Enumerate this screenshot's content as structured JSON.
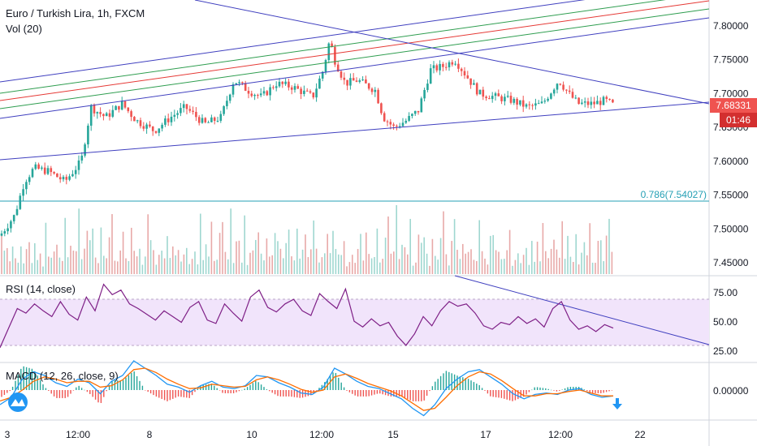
{
  "header": {
    "symbol": "Euro / Turkish Lira, 1h, FXCM",
    "volume_label": "Vol (20)"
  },
  "price_axis": {
    "ticks": [
      "7.80000",
      "7.75000",
      "7.70000",
      "7.65000",
      "7.60000",
      "7.55000",
      "7.50000",
      "7.45000"
    ],
    "last_price": "7.68331",
    "countdown": "01:46"
  },
  "fib": {
    "label": "0.786(7.54027)",
    "value": 7.54027
  },
  "rsi": {
    "label": "RSI (14, close)",
    "ticks": [
      "75.00",
      "50.00",
      "25.00"
    ],
    "upper": 70,
    "lower": 30
  },
  "macd": {
    "label": "MACD (12, 26, close, 9)",
    "ticks": [
      "0.00000"
    ]
  },
  "time_axis": {
    "labels": [
      "3",
      "12:00",
      "8",
      "10",
      "12:00",
      "15",
      "17",
      "12:00",
      "22"
    ]
  },
  "colors": {
    "up": "#26a69a",
    "down": "#ef5350",
    "trend": "#3f3fbf",
    "channel_green": "#2e9d4f",
    "channel_red": "#e53935",
    "rsi_line": "#7e1f86",
    "rsi_band": "#f1e4fb",
    "macd_line": "#2196f3",
    "signal_line": "#ff6d00",
    "fib": "#26a0b5",
    "price_badge": "#ef5350",
    "countdown_badge": "#d32f2f"
  },
  "icons": {
    "logo": "tradingview-logo-icon",
    "scroll": "scroll-to-realtime-arrow-icon"
  },
  "chart_data": {
    "type": "candlestick",
    "title": "Euro / Turkish Lira, 1h, FXCM",
    "ylim": [
      7.43,
      7.83
    ],
    "close_path": [
      [
        0,
        7.49
      ],
      [
        18,
        7.52
      ],
      [
        30,
        7.57
      ],
      [
        42,
        7.59
      ],
      [
        60,
        7.585
      ],
      [
        80,
        7.57
      ],
      [
        100,
        7.6
      ],
      [
        112,
        7.68
      ],
      [
        130,
        7.665
      ],
      [
        150,
        7.685
      ],
      [
        168,
        7.66
      ],
      [
        190,
        7.645
      ],
      [
        210,
        7.665
      ],
      [
        228,
        7.68
      ],
      [
        252,
        7.655
      ],
      [
        272,
        7.665
      ],
      [
        288,
        7.72
      ],
      [
        305,
        7.705
      ],
      [
        322,
        7.695
      ],
      [
        340,
        7.715
      ],
      [
        360,
        7.71
      ],
      [
        385,
        7.695
      ],
      [
        398,
        7.735
      ],
      [
        406,
        7.78
      ],
      [
        412,
        7.75
      ],
      [
        425,
        7.715
      ],
      [
        440,
        7.72
      ],
      [
        462,
        7.705
      ],
      [
        472,
        7.665
      ],
      [
        485,
        7.65
      ],
      [
        500,
        7.66
      ],
      [
        515,
        7.675
      ],
      [
        530,
        7.735
      ],
      [
        545,
        7.74
      ],
      [
        560,
        7.75
      ],
      [
        575,
        7.725
      ],
      [
        590,
        7.7
      ],
      [
        610,
        7.695
      ],
      [
        630,
        7.69
      ],
      [
        650,
        7.68
      ],
      [
        668,
        7.685
      ],
      [
        688,
        7.72
      ],
      [
        700,
        7.7
      ],
      [
        712,
        7.685
      ],
      [
        730,
        7.685
      ],
      [
        745,
        7.69
      ],
      [
        755,
        7.683
      ]
    ],
    "volume": [
      5,
      3,
      4,
      3,
      6,
      2,
      3,
      4,
      2,
      3,
      5,
      2,
      7,
      3,
      4,
      2,
      6,
      3,
      2,
      5,
      7,
      4,
      3,
      8,
      2,
      6,
      4,
      3,
      9,
      2,
      3,
      5,
      4,
      6,
      3,
      2,
      7,
      4,
      3,
      5,
      8,
      3,
      2,
      4,
      9,
      3,
      2,
      6,
      4,
      3,
      5,
      2,
      3,
      7,
      4,
      3,
      2,
      5,
      6,
      3
    ],
    "rsi": [
      28,
      45,
      62,
      58,
      66,
      60,
      55,
      68,
      57,
      52,
      72,
      60,
      83,
      74,
      78,
      66,
      62,
      57,
      52,
      60,
      55,
      50,
      63,
      68,
      52,
      49,
      66,
      58,
      51,
      72,
      78,
      63,
      59,
      66,
      70,
      60,
      56,
      75,
      68,
      62,
      79,
      51,
      46,
      53,
      47,
      50,
      38,
      30,
      40,
      55,
      47,
      60,
      68,
      64,
      66,
      58,
      47,
      44,
      50,
      48,
      55,
      49,
      53,
      46,
      62,
      68,
      52,
      44,
      47,
      42,
      48,
      45
    ],
    "macd": [
      -0.02,
      -0.01,
      0.015,
      0.025,
      0.02,
      0.01,
      0.005,
      0.015,
      0.01,
      -0.005,
      0.012,
      0.02,
      0.04,
      0.03,
      0.02,
      0.008,
      0.004,
      -0.003,
      0.006,
      0.012,
      0.004,
      0.002,
      0.006,
      0.02,
      0.018,
      0.01,
      0.004,
      -0.004,
      -0.006,
      0.004,
      0.03,
      0.022,
      0.012,
      0.005,
      0.002,
      -0.005,
      -0.012,
      -0.025,
      -0.035,
      -0.02,
      0.002,
      0.015,
      0.025,
      0.028,
      0.018,
      0.008,
      -0.005,
      -0.012,
      -0.006,
      -0.004,
      -0.006,
      0.0,
      0.002,
      -0.006,
      -0.01,
      -0.008
    ],
    "signal": [
      -0.015,
      -0.01,
      0.0,
      0.012,
      0.018,
      0.015,
      0.01,
      0.012,
      0.012,
      0.004,
      0.006,
      0.014,
      0.028,
      0.03,
      0.024,
      0.015,
      0.008,
      0.002,
      0.003,
      0.008,
      0.006,
      0.004,
      0.005,
      0.014,
      0.018,
      0.014,
      0.008,
      0.001,
      -0.003,
      0.0,
      0.018,
      0.022,
      0.016,
      0.009,
      0.004,
      -0.001,
      -0.008,
      -0.018,
      -0.028,
      -0.025,
      -0.01,
      0.006,
      0.018,
      0.025,
      0.022,
      0.013,
      0.002,
      -0.008,
      -0.008,
      -0.005,
      -0.005,
      -0.002,
      0.0,
      -0.004,
      -0.008,
      -0.008
    ]
  }
}
